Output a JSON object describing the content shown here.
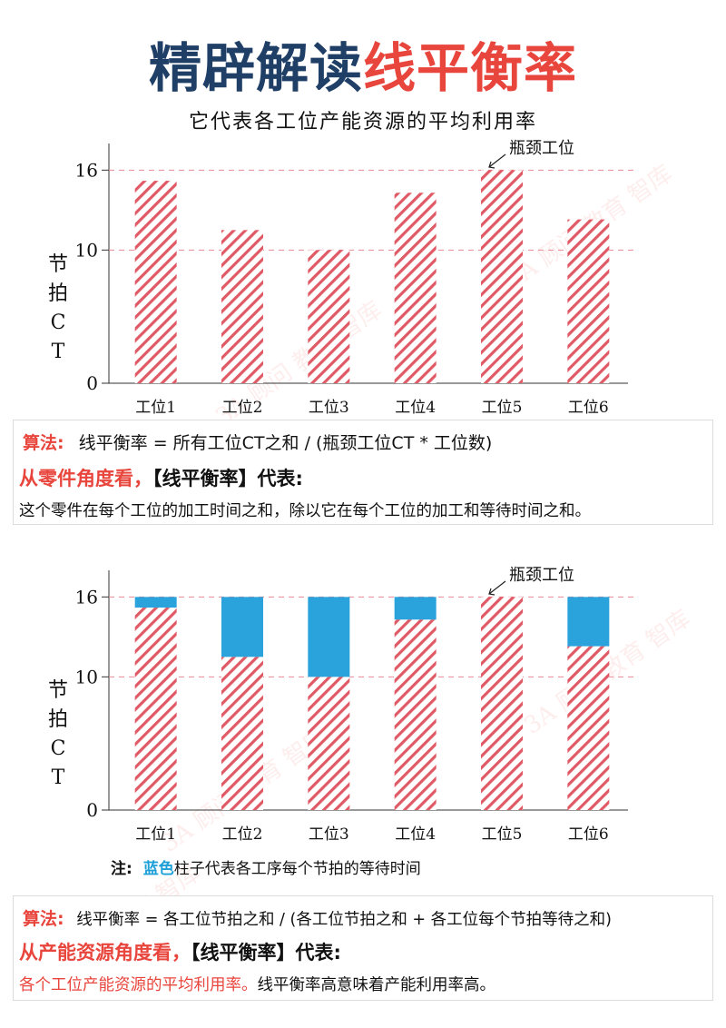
{
  "title": {
    "part1": "精辟解读",
    "part2": "线平衡率"
  },
  "subtitle": "它代表各工位产能资源的平均利用率",
  "watermark": "3A 顾问 教育 智库",
  "chart_data": [
    {
      "type": "bar",
      "categories": [
        "工位1",
        "工位2",
        "工位3",
        "工位4",
        "工位5",
        "工位6"
      ],
      "series": [
        {
          "values": [
            15.2,
            11.5,
            10,
            14.3,
            16,
            12.3
          ]
        }
      ],
      "yticks": [
        0,
        10,
        16
      ],
      "ylim": [
        0,
        18
      ],
      "ylabel": [
        "节",
        "拍",
        "C",
        "T"
      ],
      "reference_lines": [
        10,
        16
      ],
      "annotation": "瓶颈工位",
      "colors": {
        "bar_stripe": "#e05a66",
        "reference": "#e88a94"
      }
    },
    {
      "type": "bar",
      "stacked": true,
      "categories": [
        "工位1",
        "工位2",
        "工位3",
        "工位4",
        "工位5",
        "工位6"
      ],
      "series": [
        {
          "values": [
            15.2,
            11.5,
            10,
            14.3,
            16,
            12.3
          ]
        },
        {
          "values": [
            0.8,
            4.5,
            6,
            1.7,
            0,
            3.7
          ]
        }
      ],
      "yticks": [
        0,
        10,
        16
      ],
      "ylim": [
        0,
        18
      ],
      "ylabel": [
        "节",
        "拍",
        "C",
        "T"
      ],
      "reference_lines": [
        10,
        16
      ],
      "annotation": "瓶颈工位",
      "colors": {
        "bar_stripe": "#e05a66",
        "wait": "#2aa3dc",
        "reference": "#e88a94"
      }
    }
  ],
  "box1": {
    "algo_label": "算法:",
    "algo_text": "线平衡率 = 所有工位CT之和 / (瓶颈工位CT * 工位数)",
    "view_label": "从零件角度看，",
    "view_bracket": "【线平衡率】代表:",
    "desc": "这个零件在每个工位的加工时间之和，除以它在每个工位的加工和等待时间之和。"
  },
  "note": {
    "prefix": "注:",
    "blue_word": "蓝色",
    "rest": "柱子代表各工序每个节拍的等待时间"
  },
  "box2": {
    "algo_label": "算法:",
    "algo_text": "线平衡率 = 各工位节拍之和 / (各工位节拍之和 + 各工位每个节拍等待之和)",
    "view_label": "从产能资源角度看，",
    "view_bracket": "【线平衡率】代表:",
    "desc_red": "各个工位产能资源的平均利用率。",
    "desc_black": "线平衡率高意味着产能利用率高。"
  }
}
